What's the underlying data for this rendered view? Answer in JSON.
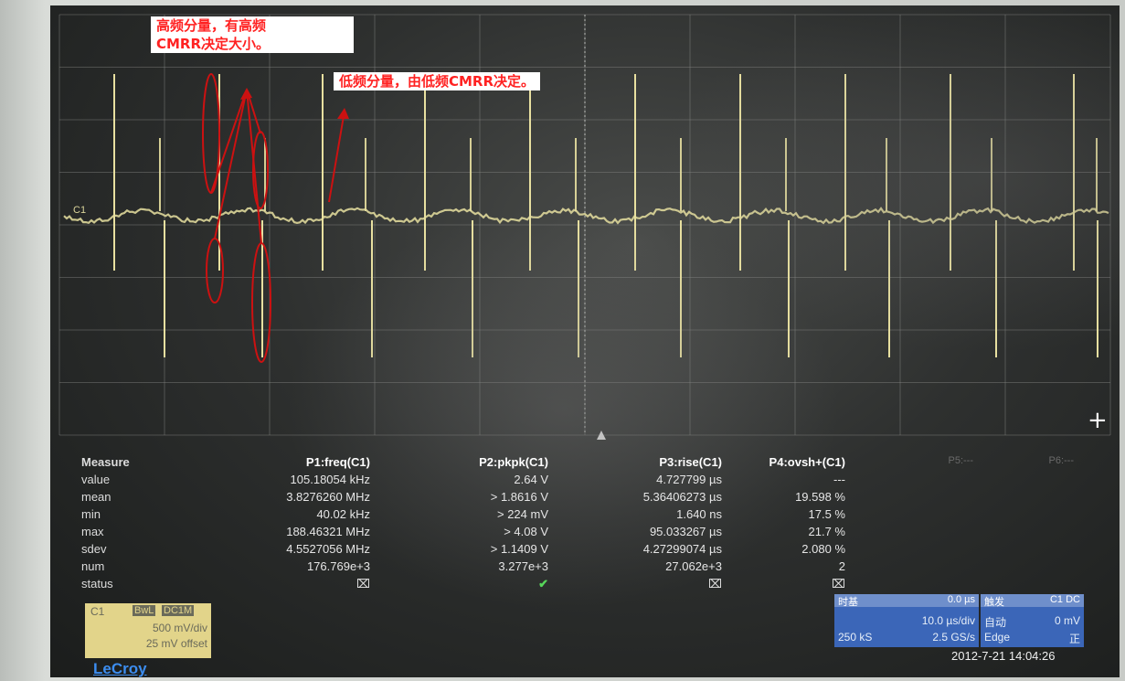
{
  "channel_label": "C1",
  "annotations": {
    "high_freq_line1": "高频分量，有高频",
    "high_freq_line2": "CMRR决定大小。",
    "low_freq": "低频分量，由低频CMRR决定。"
  },
  "measure": {
    "header_label": "Measure",
    "columns": [
      "P1:freq(C1)",
      "P2:pkpk(C1)",
      "P3:rise(C1)",
      "P4:ovsh+(C1)"
    ],
    "faded_columns": [
      "P5:---",
      "P6:---"
    ],
    "rows": [
      {
        "label": "value",
        "cells": [
          "105.18054 kHz",
          "2.64 V",
          "4.727799 µs",
          "---"
        ]
      },
      {
        "label": "mean",
        "cells": [
          "3.8276260 MHz",
          "> 1.8616 V",
          "5.36406273 µs",
          "19.598 %"
        ]
      },
      {
        "label": "min",
        "cells": [
          "40.02 kHz",
          "> 224 mV",
          "1.640 ns",
          "17.5 %"
        ]
      },
      {
        "label": "max",
        "cells": [
          "188.46321 MHz",
          "> 4.08 V",
          "95.033267 µs",
          "21.7 %"
        ]
      },
      {
        "label": "sdev",
        "cells": [
          "4.5527056 MHz",
          "> 1.1409 V",
          "4.27299074 µs",
          "2.080 %"
        ]
      },
      {
        "label": "num",
        "cells": [
          "176.769e+3",
          "3.277e+3",
          "27.062e+3",
          "2"
        ]
      },
      {
        "label": "status",
        "cells": [
          "⌧",
          "✔",
          "⌧",
          "⌧"
        ]
      }
    ]
  },
  "channel_box": {
    "name": "C1",
    "tag1": "BwL",
    "tag2": "DC1M",
    "volts_div": "500 mV/div",
    "offset": "25 mV offset"
  },
  "timebase": {
    "title": "时基",
    "delay": "0.0 µs",
    "time_div": "10.0 µs/div",
    "samples": "250 kS",
    "rate": "2.5 GS/s"
  },
  "trigger": {
    "title": "触发",
    "source": "C1 DC",
    "mode": "自动",
    "level": "0 mV",
    "type": "Edge",
    "slope": "正"
  },
  "datetime": "2012-7-21 14:04:26",
  "brand": "LeCroy",
  "colors": {
    "trace": "#e8e0a0",
    "annotation_text": "#ff2222",
    "circle": "#cc1111",
    "panel_blue": "#3b66b8",
    "channel_yellow": "#e2d48a"
  }
}
